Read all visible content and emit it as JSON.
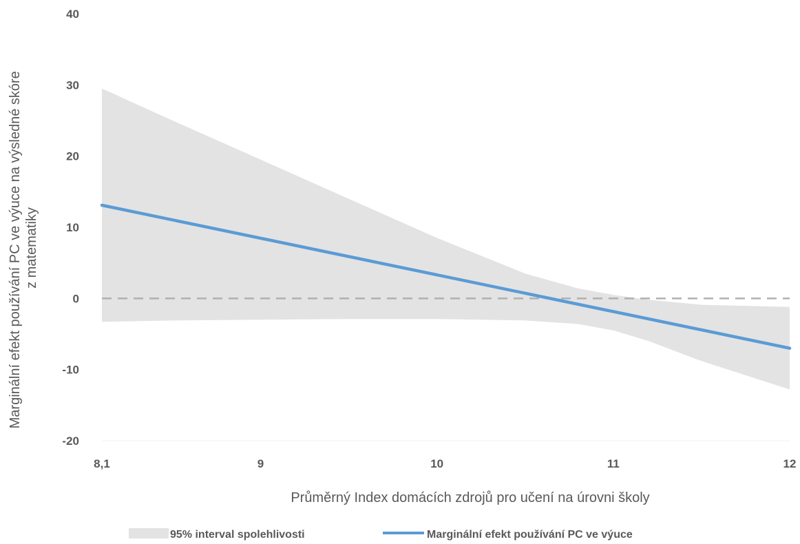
{
  "chart_data": {
    "type": "area",
    "xlabel": "Průměrný Index domácích zdrojů pro učení na úrovni školy",
    "ylabel_lines": [
      "Marginální efekt používání PC ve výuce na výsledné skóre",
      "z matematiky"
    ],
    "xlim": [
      8.1,
      12
    ],
    "ylim": [
      -20,
      40
    ],
    "x_ticks": [
      {
        "value": 8.1,
        "label": "8,1"
      },
      {
        "value": 9,
        "label": "9"
      },
      {
        "value": 10,
        "label": "10"
      },
      {
        "value": 11,
        "label": "11"
      },
      {
        "value": 12,
        "label": "12"
      }
    ],
    "y_ticks": [
      {
        "value": 40,
        "label": "40"
      },
      {
        "value": 30,
        "label": "30"
      },
      {
        "value": 20,
        "label": "20"
      },
      {
        "value": 10,
        "label": "10"
      },
      {
        "value": 0,
        "label": "0"
      },
      {
        "value": -10,
        "label": "-10"
      },
      {
        "value": -20,
        "label": "-20"
      }
    ],
    "reference_line": {
      "y": 0,
      "style": "dashed",
      "color": "#b0b0b0"
    },
    "grid": false,
    "legend_position": "bottom",
    "series": [
      {
        "name": "95% interval spolehlivosti",
        "kind": "band",
        "color": "#e3e3e3",
        "x": [
          8.1,
          8.5,
          9.0,
          9.5,
          10.0,
          10.5,
          10.8,
          11.0,
          11.2,
          11.5,
          12.0
        ],
        "upper": [
          29.5,
          25.0,
          19.5,
          14.0,
          8.5,
          3.5,
          1.4,
          0.5,
          -0.2,
          -0.9,
          -1.2
        ],
        "lower": [
          -3.3,
          -3.1,
          -3.0,
          -2.9,
          -2.9,
          -3.1,
          -3.6,
          -4.5,
          -6.0,
          -8.8,
          -12.8
        ]
      },
      {
        "name": "Marginální efekt používání PC ve výuce",
        "kind": "line",
        "color": "#5b9bd5",
        "x": [
          8.1,
          12.0
        ],
        "y": [
          13.1,
          -7.0
        ]
      }
    ]
  }
}
